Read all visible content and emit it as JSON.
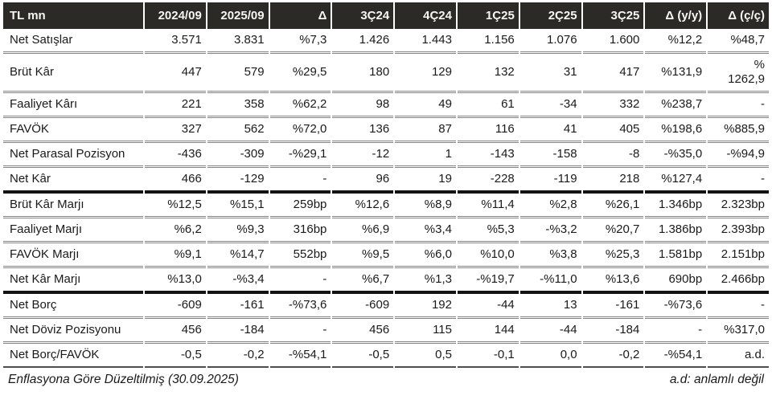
{
  "table": {
    "columns": [
      "TL mn",
      "2024/09",
      "2025/09",
      "Δ",
      "3Ç24",
      "4Ç24",
      "1Ç25",
      "2Ç25",
      "3Ç25",
      "Δ (y/y)",
      "Δ (ç/ç)"
    ],
    "sections": [
      {
        "rows": [
          {
            "label": "Net Satışlar",
            "values": [
              "3.571",
              "3.831",
              "%7,3",
              "1.426",
              "1.443",
              "1.156",
              "1.076",
              "1.600",
              "%12,2",
              "%48,7"
            ]
          },
          {
            "label": "Brüt Kâr",
            "values": [
              "447",
              "579",
              "%29,5",
              "180",
              "129",
              "132",
              "31",
              "417",
              "%131,9",
              "%\n1262,9"
            ]
          },
          {
            "label": "Faaliyet Kârı",
            "values": [
              "221",
              "358",
              "%62,2",
              "98",
              "49",
              "61",
              "-34",
              "332",
              "%238,7",
              "-"
            ]
          },
          {
            "label": "FAVÖK",
            "values": [
              "327",
              "562",
              "%72,0",
              "136",
              "87",
              "116",
              "41",
              "405",
              "%198,6",
              "%885,9"
            ]
          },
          {
            "label": "Net Parasal Pozisyon",
            "values": [
              "-436",
              "-309",
              "-%29,1",
              "-12",
              "1",
              "-143",
              "-158",
              "-8",
              "-%35,0",
              "-%94,9"
            ]
          },
          {
            "label": "Net Kâr",
            "values": [
              "466",
              "-129",
              "-",
              "96",
              "19",
              "-228",
              "-119",
              "218",
              "%127,4",
              "-"
            ]
          }
        ]
      },
      {
        "rows": [
          {
            "label": "Brüt Kâr Marjı",
            "values": [
              "%12,5",
              "%15,1",
              "259bp",
              "%12,6",
              "%8,9",
              "%11,4",
              "%2,8",
              "%26,1",
              "1.346bp",
              "2.323bp"
            ]
          },
          {
            "label": "Faaliyet Marjı",
            "values": [
              "%6,2",
              "%9,3",
              "316bp",
              "%6,9",
              "%3,4",
              "%5,3",
              "-%3,2",
              "%20,7",
              "1.386bp",
              "2.393bp"
            ]
          },
          {
            "label": "FAVÖK Marjı",
            "values": [
              "%9,1",
              "%14,7",
              "552bp",
              "%9,5",
              "%6,0",
              "%10,0",
              "%3,8",
              "%25,3",
              "1.581bp",
              "2.151bp"
            ]
          },
          {
            "label": "Net Kâr Marjı",
            "values": [
              "%13,0",
              "-%3,4",
              "-",
              "%6,7",
              "%1,3",
              "-%19,7",
              "-%11,0",
              "%13,6",
              "690bp",
              "2.466bp"
            ]
          }
        ]
      },
      {
        "rows": [
          {
            "label": "Net Borç",
            "values": [
              "-609",
              "-161",
              "-%73,6",
              "-609",
              "192",
              "-44",
              "13",
              "-161",
              "-%73,6",
              "-"
            ]
          },
          {
            "label": "Net Döviz Pozisyonu",
            "values": [
              "456",
              "-184",
              "-",
              "456",
              "115",
              "144",
              "-44",
              "-184",
              "-",
              "%317,0"
            ]
          },
          {
            "label": "Net Borç/FAVÖK",
            "values": [
              "-0,5",
              "-0,2",
              "-%54,1",
              "-0,5",
              "0,5",
              "-0,1",
              "0,0",
              "-0,2",
              "-%54,1",
              "a.d."
            ]
          }
        ]
      }
    ]
  },
  "footer": {
    "left": "Enflasyona Göre Düzeltilmiş (30.09.2025)",
    "right": "a.d: anlamlı değil"
  },
  "colors": {
    "header_bg": "#2b2a26",
    "header_text": "#f7f6f3",
    "body_text": "#1a1a1a",
    "row_divider": "#848484",
    "section_divider": "#131313"
  }
}
